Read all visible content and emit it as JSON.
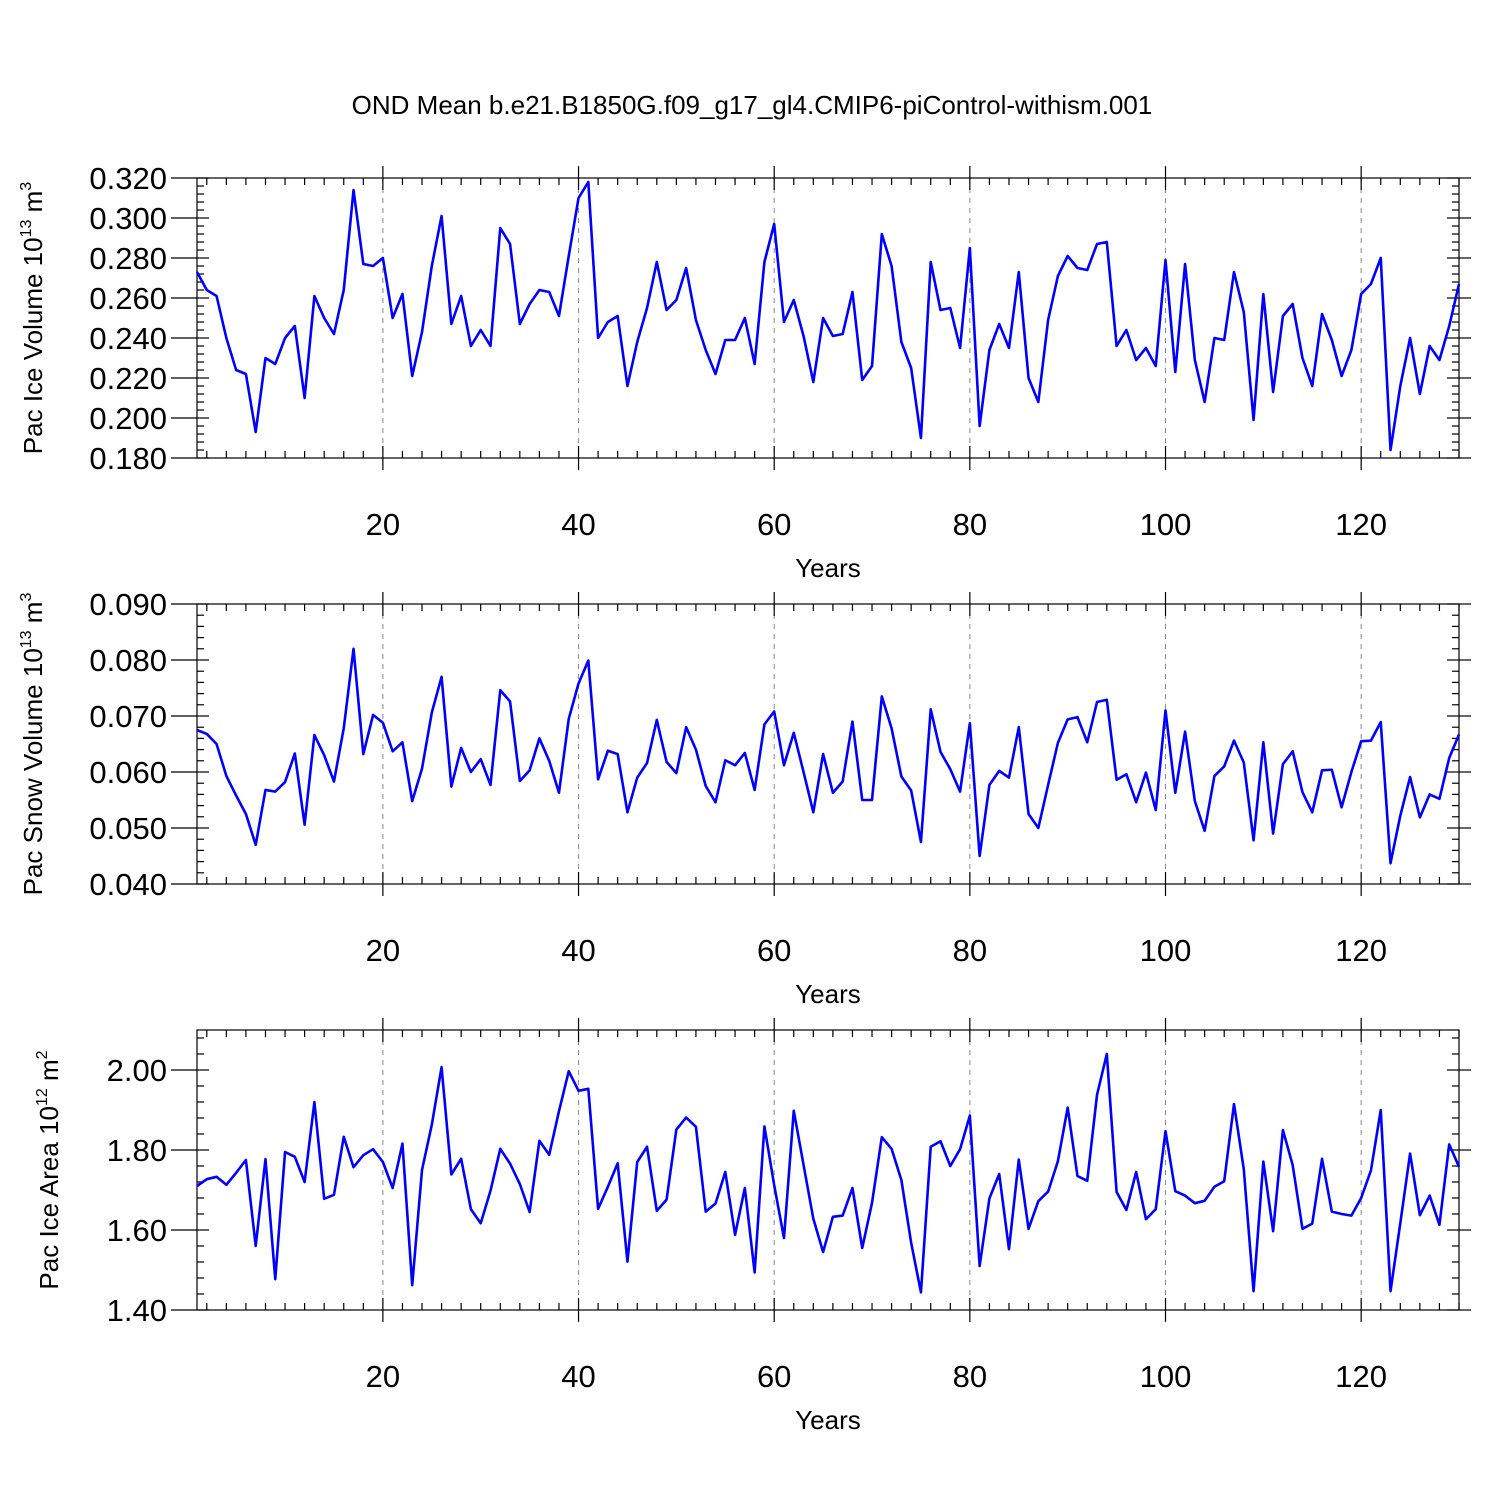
{
  "title": "OND Mean b.e21.B1850G.f09_g17_gl4.CMIP6-piControl-withism.001",
  "colors": {
    "series": "#0000ff",
    "frame": "#000000",
    "grid": "#888888"
  },
  "chart_data": [
    {
      "type": "line",
      "ylabel": "Pac Ice Volume",
      "yunit_base": "10",
      "yunit_exp": "13",
      "yunit_unit": "m",
      "yunit_unit_exp": "3",
      "xlabel": "Years",
      "xlim": [
        1,
        130
      ],
      "ylim": [
        0.18,
        0.32
      ],
      "xticks": [
        20,
        40,
        60,
        80,
        100,
        120
      ],
      "yticks": [
        0.18,
        0.2,
        0.22,
        0.24,
        0.26,
        0.28,
        0.3,
        0.32
      ],
      "ytick_labels": [
        "0.180",
        "0.200",
        "0.220",
        "0.240",
        "0.260",
        "0.280",
        "0.300",
        "0.320"
      ],
      "grid": "dashed vertical at x ticks",
      "series": [
        {
          "name": "Pac Ice Volume",
          "x_start": 1,
          "values": [
            0.273,
            0.264,
            0.261,
            0.24,
            0.224,
            0.222,
            0.193,
            0.23,
            0.227,
            0.24,
            0.246,
            0.21,
            0.261,
            0.25,
            0.242,
            0.264,
            0.314,
            0.277,
            0.276,
            0.28,
            0.25,
            0.262,
            0.221,
            0.243,
            0.276,
            0.301,
            0.247,
            0.261,
            0.236,
            0.244,
            0.236,
            0.295,
            0.287,
            0.247,
            0.257,
            0.264,
            0.263,
            0.251,
            0.281,
            0.31,
            0.318,
            0.24,
            0.248,
            0.251,
            0.216,
            0.238,
            0.255,
            0.278,
            0.254,
            0.259,
            0.275,
            0.249,
            0.234,
            0.222,
            0.239,
            0.239,
            0.25,
            0.227,
            0.278,
            0.297,
            0.248,
            0.259,
            0.241,
            0.218,
            0.25,
            0.241,
            0.242,
            0.263,
            0.219,
            0.226,
            0.292,
            0.276,
            0.238,
            0.225,
            0.19,
            0.278,
            0.254,
            0.255,
            0.235,
            0.285,
            0.196,
            0.234,
            0.247,
            0.235,
            0.273,
            0.22,
            0.208,
            0.249,
            0.271,
            0.281,
            0.275,
            0.274,
            0.287,
            0.288,
            0.236,
            0.244,
            0.229,
            0.235,
            0.226,
            0.279,
            0.223,
            0.277,
            0.229,
            0.208,
            0.24,
            0.239,
            0.273,
            0.253,
            0.199,
            0.262,
            0.213,
            0.251,
            0.257,
            0.23,
            0.216,
            0.252,
            0.239,
            0.221,
            0.234,
            0.262,
            0.267,
            0.28,
            0.184,
            0.216,
            0.24,
            0.212,
            0.236,
            0.229,
            0.246,
            0.267
          ]
        }
      ]
    },
    {
      "type": "line",
      "ylabel": "Pac Snow Volume",
      "yunit_base": "10",
      "yunit_exp": "13",
      "yunit_unit": "m",
      "yunit_unit_exp": "3",
      "xlabel": "Years",
      "xlim": [
        1,
        130
      ],
      "ylim": [
        0.04,
        0.09
      ],
      "xticks": [
        20,
        40,
        60,
        80,
        100,
        120
      ],
      "yticks": [
        0.04,
        0.05,
        0.06,
        0.07,
        0.08,
        0.09
      ],
      "ytick_labels": [
        "0.040",
        "0.050",
        "0.060",
        "0.070",
        "0.080",
        "0.090"
      ],
      "grid": "dashed vertical at x ticks",
      "series": [
        {
          "name": "Pac Snow Volume",
          "x_start": 1,
          "values": [
            0.0675,
            0.0668,
            0.065,
            0.0593,
            0.0558,
            0.0525,
            0.047,
            0.0568,
            0.0565,
            0.0582,
            0.0633,
            0.0506,
            0.0666,
            0.063,
            0.0583,
            0.0678,
            0.082,
            0.0632,
            0.0702,
            0.0688,
            0.0637,
            0.0653,
            0.0548,
            0.0606,
            0.0706,
            0.077,
            0.0574,
            0.0643,
            0.06,
            0.0623,
            0.0577,
            0.0746,
            0.0726,
            0.0584,
            0.0603,
            0.066,
            0.062,
            0.0563,
            0.0695,
            0.0758,
            0.0799,
            0.0587,
            0.0638,
            0.0632,
            0.0528,
            0.059,
            0.0616,
            0.0693,
            0.0618,
            0.0598,
            0.068,
            0.064,
            0.0575,
            0.0546,
            0.0621,
            0.0612,
            0.0634,
            0.0568,
            0.0685,
            0.0708,
            0.0612,
            0.067,
            0.06,
            0.0528,
            0.0632,
            0.0563,
            0.0583,
            0.069,
            0.055,
            0.055,
            0.0735,
            0.0678,
            0.0592,
            0.0567,
            0.0475,
            0.0712,
            0.0636,
            0.0605,
            0.0565,
            0.0687,
            0.045,
            0.0577,
            0.0602,
            0.059,
            0.068,
            0.0525,
            0.05,
            0.0577,
            0.0652,
            0.0694,
            0.0698,
            0.0653,
            0.0725,
            0.0729,
            0.0586,
            0.0596,
            0.0546,
            0.0599,
            0.0532,
            0.071,
            0.0563,
            0.0672,
            0.0548,
            0.0495,
            0.0593,
            0.061,
            0.0656,
            0.0617,
            0.0478,
            0.0653,
            0.049,
            0.0614,
            0.0637,
            0.0564,
            0.0528,
            0.0603,
            0.0604,
            0.0537,
            0.06,
            0.0655,
            0.0656,
            0.0689,
            0.0437,
            0.0522,
            0.0591,
            0.0519,
            0.056,
            0.0552,
            0.0625,
            0.0667
          ]
        }
      ]
    },
    {
      "type": "line",
      "ylabel": "Pac Ice Area",
      "yunit_base": "10",
      "yunit_exp": "12",
      "yunit_unit": "m",
      "yunit_unit_exp": "2",
      "xlabel": "Years",
      "xlim": [
        1,
        130
      ],
      "ylim": [
        1.4,
        2.1
      ],
      "xticks": [
        20,
        40,
        60,
        80,
        100,
        120
      ],
      "yticks": [
        1.4,
        1.6,
        1.8,
        2.0
      ],
      "ytick_labels": [
        "1.40",
        "1.60",
        "1.80",
        "2.00"
      ],
      "grid": "dashed vertical at x ticks",
      "series": [
        {
          "name": "Pac Ice Area",
          "x_start": 1,
          "values": [
            1.71,
            1.727,
            1.733,
            1.713,
            1.743,
            1.775,
            1.56,
            1.777,
            1.477,
            1.795,
            1.783,
            1.72,
            1.92,
            1.678,
            1.688,
            1.833,
            1.757,
            1.787,
            1.802,
            1.77,
            1.705,
            1.816,
            1.462,
            1.75,
            1.863,
            2.007,
            1.739,
            1.778,
            1.652,
            1.617,
            1.698,
            1.803,
            1.766,
            1.715,
            1.645,
            1.823,
            1.788,
            1.897,
            1.997,
            1.948,
            1.953,
            1.653,
            1.708,
            1.767,
            1.521,
            1.77,
            1.808,
            1.648,
            1.676,
            1.851,
            1.881,
            1.858,
            1.646,
            1.666,
            1.745,
            1.588,
            1.705,
            1.494,
            1.859,
            1.712,
            1.58,
            1.898,
            1.763,
            1.628,
            1.545,
            1.633,
            1.636,
            1.705,
            1.555,
            1.668,
            1.832,
            1.803,
            1.725,
            1.568,
            1.444,
            1.808,
            1.822,
            1.76,
            1.802,
            1.886,
            1.51,
            1.679,
            1.74,
            1.552,
            1.776,
            1.603,
            1.672,
            1.696,
            1.772,
            1.906,
            1.735,
            1.723,
            1.938,
            2.04,
            1.695,
            1.65,
            1.745,
            1.627,
            1.652,
            1.847,
            1.697,
            1.686,
            1.667,
            1.673,
            1.708,
            1.722,
            1.915,
            1.752,
            1.447,
            1.771,
            1.597,
            1.85,
            1.762,
            1.603,
            1.616,
            1.778,
            1.646,
            1.64,
            1.636,
            1.68,
            1.749,
            1.9,
            1.447,
            1.617,
            1.791,
            1.637,
            1.686,
            1.613,
            1.814,
            1.758
          ]
        }
      ]
    }
  ]
}
